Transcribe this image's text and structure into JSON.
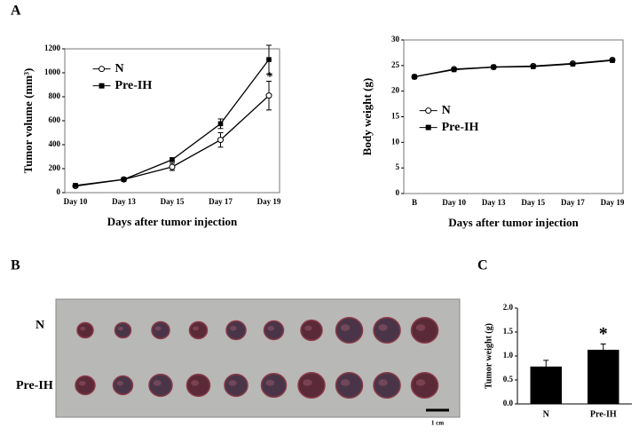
{
  "panels": [
    "A",
    "B",
    "C"
  ],
  "photo": {
    "rows": [
      "N",
      "Pre-IH"
    ],
    "scale_bar": "1 cm"
  },
  "chart_data": [
    {
      "type": "line",
      "x_label": "Days after tumor injection",
      "y_label": "Tumor volume (mm³)",
      "categories": [
        "Day 10",
        "Day 13",
        "Day 15",
        "Day 17",
        "Day 19"
      ],
      "series": [
        {
          "name": "N",
          "color": "#000000",
          "marker": "circle",
          "values": [
            55,
            110,
            215,
            440,
            810
          ],
          "errors": [
            10,
            10,
            30,
            60,
            120
          ]
        },
        {
          "name": "Pre-IH",
          "color": "#000000",
          "marker": "square",
          "values": [
            60,
            110,
            275,
            575,
            1110
          ],
          "errors": [
            10,
            10,
            15,
            40,
            120
          ]
        }
      ],
      "ylim": [
        0,
        1200
      ],
      "yticks": [
        0,
        200,
        400,
        600,
        800,
        1000,
        1200
      ],
      "legend": "upper left",
      "annotation": "*"
    },
    {
      "type": "line",
      "x_label": "Days after tumor injection",
      "y_label": "Body weight (g)",
      "categories": [
        "B",
        "Day 10",
        "Day 13",
        "Day 15",
        "Day 17",
        "Day 19"
      ],
      "series": [
        {
          "name": "N",
          "color": "#000000",
          "marker": "circle",
          "values": [
            22.8,
            24.3,
            24.7,
            24.9,
            25.4,
            26.1
          ]
        },
        {
          "name": "Pre-IH",
          "color": "#000000",
          "marker": "square",
          "values": [
            22.8,
            24.2,
            24.7,
            24.8,
            25.3,
            26.0
          ]
        }
      ],
      "ylim": [
        0,
        30
      ],
      "yticks": [
        0,
        5,
        10,
        15,
        20,
        25,
        30
      ],
      "legend": "center left"
    },
    {
      "type": "bar",
      "y_label": "Tumor weight (g)",
      "categories": [
        "N",
        "Pre-IH"
      ],
      "values": [
        0.78,
        1.13
      ],
      "errors": [
        0.13,
        0.12
      ],
      "color": "#000000",
      "ylim": [
        0,
        2.0
      ],
      "yticks": [
        {
          "value": 0,
          "label": "0.0"
        },
        {
          "value": 0.5,
          "label": "0.5"
        },
        {
          "value": 1.0,
          "label": "1.0"
        },
        {
          "value": 1.5,
          "label": "1.5"
        },
        {
          "value": 2.0,
          "label": "2.0"
        }
      ],
      "annotation": "*"
    }
  ]
}
